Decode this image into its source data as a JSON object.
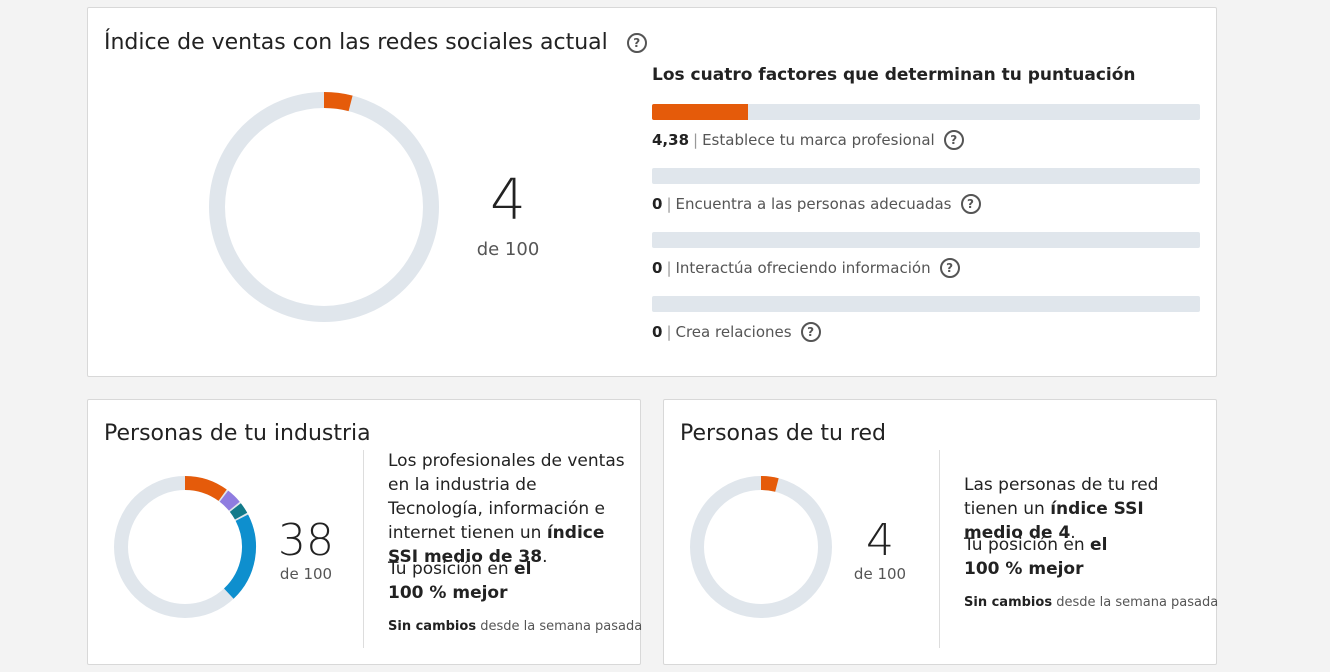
{
  "main": {
    "title": "Índice de ventas con las redes sociales actual",
    "score": "4",
    "score_of": "de 100",
    "factors_title": "Los cuatro factores que determinan tu puntuación",
    "factors": [
      {
        "value": "4,38",
        "label": "Establece tu marca profesional",
        "fill": 0.175
      },
      {
        "value": "0",
        "label": "Encuentra a las personas adecuadas",
        "fill": 0
      },
      {
        "value": "0",
        "label": "Interactúa ofreciendo información",
        "fill": 0
      },
      {
        "value": "0",
        "label": "Crea relaciones",
        "fill": 0
      }
    ],
    "separator": "|",
    "colors": {
      "accent": "#e55b0a",
      "track": "#e0e6ec"
    }
  },
  "industry": {
    "title": "Personas de tu industria",
    "score": "38",
    "score_of": "de 100",
    "desc_text": "Los profesionales de ventas en la industria de Tecnología, información e internet tienen un",
    "desc_bold": "índice SSI medio de 38",
    "desc_end": ".",
    "rank_text": "Tu posición en",
    "rank_bold1": "el",
    "rank_bold2": "100 % mejor",
    "foot_bold": "Sin cambios",
    "foot_text": "desde la semana pasada",
    "segment_colors": [
      "#e55b0a",
      "#8f7ce0",
      "#127a8a",
      "#0e8fce"
    ]
  },
  "network": {
    "title": "Personas de tu red",
    "score": "4",
    "score_of": "de 100",
    "desc_text": "Las personas de tu red tienen un",
    "desc_bold": "índice SSI medio de 4",
    "desc_end": ".",
    "rank_text": "Tu posición en",
    "rank_bold1": "el",
    "rank_bold2": "100 % mejor",
    "foot_bold": "Sin cambios",
    "foot_text": "desde la semana pasada"
  }
}
